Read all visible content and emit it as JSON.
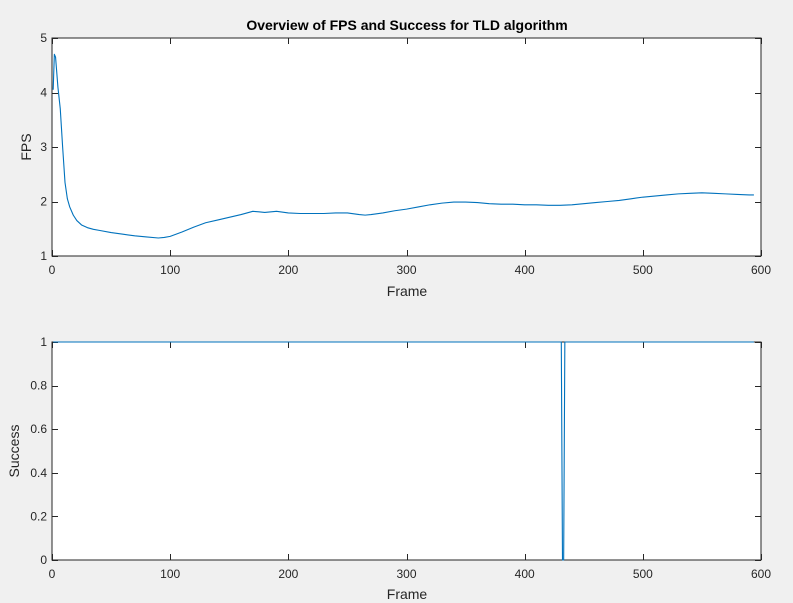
{
  "chart_data": [
    {
      "type": "line",
      "title": "Overview of FPS and Success for TLD algorithm",
      "xlabel": "Frame",
      "ylabel": "FPS",
      "xlim": [
        0,
        600
      ],
      "ylim": [
        1,
        5
      ],
      "xticks": [
        0,
        100,
        200,
        300,
        400,
        500,
        600
      ],
      "yticks": [
        1,
        2,
        3,
        4,
        5
      ],
      "grid": false,
      "color": "#0072bd",
      "series": [
        {
          "x": [
            1,
            2,
            3,
            5,
            7,
            9,
            11,
            13,
            15,
            18,
            21,
            25,
            30,
            35,
            40,
            50,
            60,
            70,
            80,
            90,
            95,
            100,
            110,
            120,
            130,
            140,
            150,
            160,
            170,
            175,
            180,
            190,
            200,
            210,
            220,
            230,
            240,
            250,
            260,
            265,
            270,
            280,
            290,
            300,
            310,
            320,
            330,
            340,
            350,
            360,
            370,
            380,
            390,
            400,
            410,
            420,
            430,
            440,
            450,
            460,
            470,
            480,
            490,
            500,
            510,
            520,
            530,
            540,
            550,
            560,
            570,
            580,
            590,
            594
          ],
          "y": [
            4.05,
            4.7,
            4.65,
            4.1,
            3.7,
            3.0,
            2.35,
            2.05,
            1.9,
            1.75,
            1.65,
            1.57,
            1.52,
            1.49,
            1.47,
            1.43,
            1.4,
            1.37,
            1.35,
            1.33,
            1.34,
            1.36,
            1.44,
            1.53,
            1.61,
            1.66,
            1.71,
            1.76,
            1.82,
            1.81,
            1.8,
            1.82,
            1.79,
            1.78,
            1.78,
            1.78,
            1.79,
            1.79,
            1.76,
            1.75,
            1.76,
            1.79,
            1.83,
            1.86,
            1.9,
            1.94,
            1.97,
            1.99,
            1.99,
            1.98,
            1.96,
            1.95,
            1.95,
            1.94,
            1.94,
            1.93,
            1.93,
            1.94,
            1.96,
            1.98,
            2.0,
            2.02,
            2.05,
            2.08,
            2.1,
            2.12,
            2.14,
            2.15,
            2.16,
            2.15,
            2.14,
            2.13,
            2.12,
            2.12
          ]
        }
      ]
    },
    {
      "type": "line",
      "title": "",
      "xlabel": "Frame",
      "ylabel": "Success",
      "xlim": [
        0,
        600
      ],
      "ylim": [
        0,
        1
      ],
      "xticks": [
        0,
        100,
        200,
        300,
        400,
        500,
        600
      ],
      "yticks": [
        0,
        0.2,
        0.4,
        0.6,
        0.8,
        1
      ],
      "grid": false,
      "color": "#0072bd",
      "series": [
        {
          "x": [
            1,
            430,
            431,
            432,
            433,
            434,
            594
          ],
          "y": [
            1,
            1,
            1,
            0,
            0,
            1,
            1
          ]
        }
      ]
    }
  ]
}
